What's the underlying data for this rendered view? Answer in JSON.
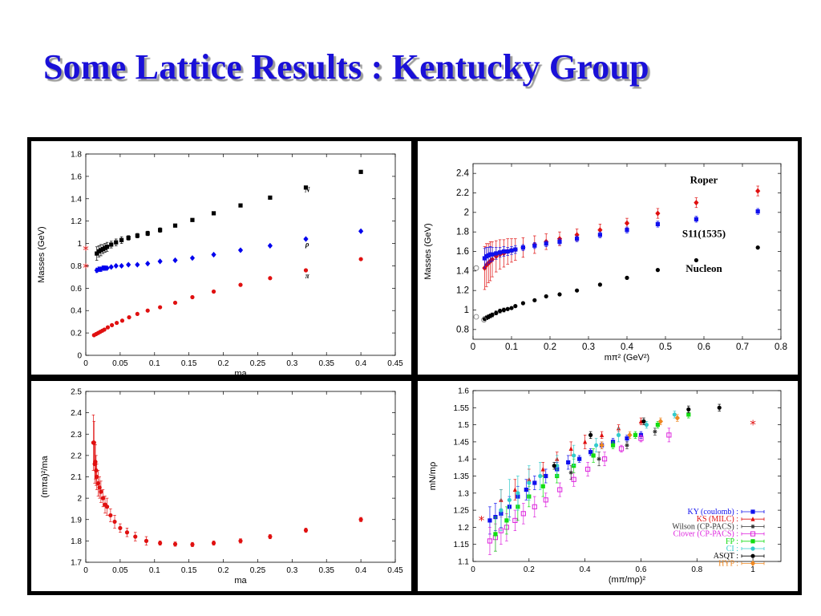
{
  "title": "Some Lattice  Results : Kentucky Group",
  "chart_data": [
    {
      "type": "scatter",
      "position": "top-left",
      "xlabel": "ma",
      "ylabel": "Masses (GeV)",
      "xlim": [
        0,
        0.45
      ],
      "ylim": [
        0,
        1.8
      ],
      "xticks": [
        "0",
        "0.05",
        "0.1",
        "0.15",
        "0.2",
        "0.25",
        "0.3",
        "0.35",
        "0.4",
        "0.45"
      ],
      "yticks": [
        "0",
        "0.2",
        "0.4",
        "0.6",
        "0.8",
        "1",
        "1.2",
        "1.4",
        "1.6",
        "1.8"
      ],
      "annotations": [
        "N",
        "ρ",
        "π"
      ],
      "series": [
        {
          "label": "N",
          "color": "#000000",
          "marker": "square",
          "x": [
            0.016,
            0.019,
            0.022,
            0.025,
            0.028,
            0.031,
            0.037,
            0.044,
            0.052,
            0.062,
            0.075,
            0.09,
            0.108,
            0.13,
            0.155,
            0.186,
            0.225,
            0.268,
            0.32,
            0.4
          ],
          "y": [
            0.91,
            0.93,
            0.94,
            0.95,
            0.96,
            0.97,
            0.99,
            1.01,
            1.03,
            1.05,
            1.07,
            1.09,
            1.12,
            1.16,
            1.21,
            1.27,
            1.34,
            1.41,
            1.5,
            1.64
          ],
          "err": [
            0.06,
            0.05,
            0.05,
            0.04,
            0.04,
            0.04,
            0.03,
            0.03,
            0.03,
            0.02,
            0.02,
            0.02,
            0.02,
            0.01,
            0.01,
            0.01,
            0.01,
            0.01,
            0.01,
            0.01
          ]
        },
        {
          "label": "ρ",
          "color": "#0000ee",
          "marker": "diamond",
          "x": [
            0.016,
            0.019,
            0.022,
            0.025,
            0.028,
            0.031,
            0.037,
            0.044,
            0.052,
            0.062,
            0.075,
            0.09,
            0.108,
            0.13,
            0.155,
            0.186,
            0.225,
            0.268,
            0.32,
            0.4
          ],
          "y": [
            0.76,
            0.77,
            0.77,
            0.78,
            0.78,
            0.78,
            0.79,
            0.8,
            0.8,
            0.81,
            0.81,
            0.82,
            0.84,
            0.85,
            0.87,
            0.9,
            0.94,
            0.98,
            1.04,
            1.11
          ],
          "err": [
            0.02,
            0.02,
            0.02,
            0.02,
            0.02,
            0.01,
            0.01,
            0.01,
            0.01,
            0.01,
            0.01,
            0.01,
            0.01,
            0.01,
            0.01,
            0.01,
            0.01,
            0.01,
            0.01,
            0.01
          ]
        },
        {
          "label": "π",
          "color": "#e01010",
          "marker": "circle",
          "x": [
            0.012,
            0.015,
            0.018,
            0.021,
            0.024,
            0.027,
            0.032,
            0.038,
            0.045,
            0.053,
            0.063,
            0.075,
            0.09,
            0.108,
            0.13,
            0.155,
            0.186,
            0.225,
            0.268,
            0.32,
            0.4
          ],
          "y": [
            0.18,
            0.19,
            0.2,
            0.21,
            0.22,
            0.23,
            0.25,
            0.27,
            0.29,
            0.31,
            0.34,
            0.37,
            0.4,
            0.43,
            0.47,
            0.52,
            0.57,
            0.63,
            0.69,
            0.76,
            0.86
          ],
          "err": [
            0,
            0,
            0,
            0,
            0,
            0,
            0,
            0,
            0,
            0,
            0,
            0,
            0,
            0,
            0,
            0,
            0,
            0,
            0,
            0,
            0
          ]
        }
      ],
      "asterisks": [
        {
          "y": 0.94,
          "color": "#e01010"
        },
        {
          "y": 0.78,
          "color": "#e01010"
        }
      ]
    },
    {
      "type": "scatter",
      "position": "top-right",
      "xlabel": "mπ² (GeV²)",
      "ylabel": "Masses (GeV)",
      "xlim": [
        0,
        0.8
      ],
      "ylim": [
        0.7,
        2.5
      ],
      "xticks": [
        "0",
        "0.1",
        "0.2",
        "0.3",
        "0.4",
        "0.5",
        "0.6",
        "0.7",
        "0.8"
      ],
      "yticks": [
        "0.8",
        "1",
        "1.2",
        "1.4",
        "1.6",
        "1.8",
        "2",
        "2.2",
        "2.4"
      ],
      "annotations": [
        "Roper",
        "S11(1535)",
        "Nucleon"
      ],
      "series": [
        {
          "label": "Roper",
          "color": "#e01010",
          "marker": "diamond",
          "x": [
            0.03,
            0.035,
            0.04,
            0.045,
            0.05,
            0.06,
            0.07,
            0.08,
            0.09,
            0.1,
            0.11,
            0.13,
            0.16,
            0.19,
            0.225,
            0.27,
            0.33,
            0.4,
            0.48,
            0.58,
            0.74
          ],
          "y": [
            1.43,
            1.46,
            1.48,
            1.5,
            1.52,
            1.55,
            1.57,
            1.58,
            1.6,
            1.61,
            1.62,
            1.64,
            1.67,
            1.7,
            1.73,
            1.77,
            1.82,
            1.89,
            1.99,
            2.1,
            2.22
          ],
          "err": [
            0.22,
            0.22,
            0.2,
            0.2,
            0.18,
            0.16,
            0.15,
            0.14,
            0.13,
            0.12,
            0.11,
            0.1,
            0.09,
            0.08,
            0.07,
            0.06,
            0.06,
            0.05,
            0.05,
            0.05,
            0.05
          ]
        },
        {
          "label": "S11(1535)",
          "color": "#1010ee",
          "marker": "square",
          "x": [
            0.03,
            0.035,
            0.04,
            0.045,
            0.05,
            0.06,
            0.07,
            0.08,
            0.09,
            0.1,
            0.11,
            0.13,
            0.16,
            0.19,
            0.225,
            0.27,
            0.33,
            0.4,
            0.48,
            0.58,
            0.74
          ],
          "y": [
            1.53,
            1.55,
            1.56,
            1.57,
            1.57,
            1.58,
            1.59,
            1.6,
            1.6,
            1.61,
            1.62,
            1.64,
            1.66,
            1.68,
            1.7,
            1.73,
            1.77,
            1.82,
            1.88,
            1.93,
            2.01
          ],
          "err": [
            0.1,
            0.09,
            0.08,
            0.08,
            0.07,
            0.06,
            0.05,
            0.05,
            0.04,
            0.04,
            0.04,
            0.03,
            0.03,
            0.03,
            0.03,
            0.03,
            0.03,
            0.03,
            0.03,
            0.03,
            0.03
          ]
        },
        {
          "label": "Nucleon",
          "color": "#000000",
          "marker": "circle",
          "x": [
            0.03,
            0.035,
            0.04,
            0.045,
            0.05,
            0.06,
            0.07,
            0.08,
            0.09,
            0.1,
            0.11,
            0.13,
            0.16,
            0.19,
            0.225,
            0.27,
            0.33,
            0.4,
            0.48,
            0.58,
            0.74
          ],
          "y": [
            0.91,
            0.92,
            0.93,
            0.94,
            0.95,
            0.97,
            0.99,
            1.0,
            1.01,
            1.02,
            1.04,
            1.07,
            1.1,
            1.14,
            1.16,
            1.2,
            1.26,
            1.33,
            1.41,
            1.51,
            1.64
          ],
          "err": [
            0.02,
            0.02,
            0.02,
            0.02,
            0.02,
            0.02,
            0.02,
            0.02,
            0.01,
            0.01,
            0.01,
            0.01,
            0.01,
            0.01,
            0.01,
            0.01,
            0.01,
            0.01,
            0.01,
            0.01,
            0.01
          ]
        }
      ],
      "open_points": [
        {
          "x": 0.0,
          "y": 0.93
        },
        {
          "x": 0.02,
          "y": 0.9
        },
        {
          "x": 0.0,
          "y": 1.43
        }
      ]
    },
    {
      "type": "scatter",
      "position": "bottom-left",
      "xlabel": "ma",
      "ylabel": "(mπa)²/ma",
      "xlim": [
        0,
        0.45
      ],
      "ylim": [
        1.7,
        2.5
      ],
      "xticks": [
        "0",
        "0.05",
        "0.1",
        "0.15",
        "0.2",
        "0.25",
        "0.3",
        "0.35",
        "0.4",
        "0.45"
      ],
      "yticks": [
        "1.7",
        "1.8",
        "1.9",
        "2",
        "2.1",
        "2.2",
        "2.3",
        "2.4",
        "2.5"
      ],
      "series": [
        {
          "label": "",
          "color": "#e01010",
          "marker": "circle",
          "x": [
            0.011,
            0.012,
            0.013,
            0.014,
            0.015,
            0.016,
            0.018,
            0.02,
            0.022,
            0.025,
            0.028,
            0.031,
            0.036,
            0.042,
            0.05,
            0.06,
            0.072,
            0.088,
            0.108,
            0.13,
            0.155,
            0.186,
            0.225,
            0.268,
            0.32,
            0.4
          ],
          "y": [
            2.26,
            2.26,
            2.16,
            2.17,
            2.13,
            2.1,
            2.07,
            2.05,
            2.03,
            2.0,
            1.97,
            1.96,
            1.92,
            1.89,
            1.86,
            1.84,
            1.82,
            1.8,
            1.79,
            1.785,
            1.783,
            1.79,
            1.8,
            1.82,
            1.85,
            1.9
          ],
          "err": [
            0.13,
            0.1,
            0.09,
            0.08,
            0.07,
            0.06,
            0.06,
            0.05,
            0.05,
            0.04,
            0.04,
            0.04,
            0.03,
            0.03,
            0.02,
            0.02,
            0.02,
            0.02,
            0.01,
            0.01,
            0.01,
            0.01,
            0.01,
            0.01,
            0.01,
            0.01
          ]
        }
      ]
    },
    {
      "type": "scatter",
      "position": "bottom-right",
      "xlabel": "(mπ/mρ)²",
      "ylabel": "mN/mρ",
      "xlim": [
        0,
        1.1
      ],
      "ylim": [
        1.1,
        1.6
      ],
      "xticks": [
        "0",
        "0.2",
        "0.4",
        "0.6",
        "0.8",
        "1"
      ],
      "yticks": [
        "1.1",
        "1.15",
        "1.2",
        "1.25",
        "1.3",
        "1.35",
        "1.4",
        "1.45",
        "1.5",
        "1.55",
        "1.6"
      ],
      "legend_position": "lower-right",
      "series": [
        {
          "label": "KY (coulomb) :",
          "color": "#1010ee",
          "marker": "square",
          "x": [
            0.06,
            0.08,
            0.1,
            0.13,
            0.16,
            0.19,
            0.22,
            0.26,
            0.3,
            0.34,
            0.38,
            0.42,
            0.46,
            0.5,
            0.55,
            0.6
          ],
          "y": [
            1.22,
            1.23,
            1.24,
            1.26,
            1.29,
            1.31,
            1.33,
            1.35,
            1.37,
            1.39,
            1.4,
            1.42,
            1.44,
            1.45,
            1.46,
            1.47
          ],
          "err": [
            0.04,
            0.04,
            0.04,
            0.03,
            0.03,
            0.03,
            0.02,
            0.02,
            0.02,
            0.02,
            0.01,
            0.01,
            0.01,
            0.01,
            0.01,
            0.01
          ]
        },
        {
          "label": "KS (MILC) :",
          "color": "#e01010",
          "marker": "triangle",
          "x": [
            0.1,
            0.15,
            0.2,
            0.25,
            0.3,
            0.35,
            0.4,
            0.46,
            0.52,
            0.6
          ],
          "y": [
            1.28,
            1.31,
            1.34,
            1.37,
            1.4,
            1.43,
            1.45,
            1.47,
            1.49,
            1.51
          ],
          "err": [
            0.03,
            0.03,
            0.03,
            0.02,
            0.02,
            0.02,
            0.02,
            0.01,
            0.01,
            0.01
          ]
        },
        {
          "label": "Wilson (CP-PACS) :",
          "color": "#333333",
          "marker": "star",
          "x": [
            0.35,
            0.45,
            0.55,
            0.65
          ],
          "y": [
            1.36,
            1.4,
            1.44,
            1.48
          ],
          "err": [
            0.02,
            0.02,
            0.01,
            0.01
          ]
        },
        {
          "label": "Clover (CP-PACS) :",
          "color": "#dd22dd",
          "marker": "open-square",
          "x": [
            0.06,
            0.08,
            0.1,
            0.12,
            0.15,
            0.18,
            0.22,
            0.26,
            0.31,
            0.36,
            0.41,
            0.47,
            0.53,
            0.6,
            0.7
          ],
          "y": [
            1.16,
            1.17,
            1.19,
            1.2,
            1.22,
            1.24,
            1.26,
            1.28,
            1.31,
            1.34,
            1.37,
            1.4,
            1.43,
            1.46,
            1.47
          ],
          "err": [
            0.04,
            0.04,
            0.04,
            0.04,
            0.03,
            0.03,
            0.03,
            0.02,
            0.02,
            0.02,
            0.02,
            0.02,
            0.01,
            0.01,
            0.02
          ]
        },
        {
          "label": "FP :",
          "color": "#11dd11",
          "marker": "square",
          "x": [
            0.08,
            0.12,
            0.16,
            0.2,
            0.25,
            0.3,
            0.36,
            0.43,
            0.5,
            0.58,
            0.66,
            0.77
          ],
          "y": [
            1.18,
            1.22,
            1.26,
            1.29,
            1.32,
            1.35,
            1.38,
            1.41,
            1.44,
            1.47,
            1.5,
            1.53
          ],
          "err": [
            0.05,
            0.04,
            0.04,
            0.03,
            0.03,
            0.02,
            0.02,
            0.02,
            0.01,
            0.01,
            0.01,
            0.01
          ]
        },
        {
          "label": "CI :",
          "color": "#33cccc",
          "marker": "circle",
          "x": [
            0.1,
            0.13,
            0.16,
            0.2,
            0.24,
            0.3,
            0.36,
            0.44,
            0.52,
            0.62,
            0.72
          ],
          "y": [
            1.25,
            1.28,
            1.3,
            1.33,
            1.35,
            1.38,
            1.41,
            1.44,
            1.47,
            1.5,
            1.53
          ],
          "err": [
            0.06,
            0.06,
            0.05,
            0.05,
            0.04,
            0.03,
            0.03,
            0.02,
            0.02,
            0.01,
            0.01
          ]
        },
        {
          "label": "ASQT :",
          "color": "#000000",
          "marker": "circle",
          "x": [
            0.29,
            0.42,
            0.61,
            0.77,
            0.88
          ],
          "y": [
            1.38,
            1.47,
            1.51,
            1.545,
            1.55
          ],
          "err": [
            0.01,
            0.01,
            0.01,
            0.01,
            0.01
          ]
        },
        {
          "label": "HYP :",
          "color": "#ee8822",
          "marker": "diamond",
          "x": [
            0.46,
            0.56,
            0.67,
            0.73
          ],
          "y": [
            1.44,
            1.47,
            1.51,
            1.52
          ],
          "err": [
            0.01,
            0.01,
            0.01,
            0.01
          ]
        }
      ],
      "asterisks": [
        {
          "x": 0.03,
          "y": 1.22,
          "color": "#e01010"
        },
        {
          "x": 1.0,
          "y": 1.5,
          "color": "#e01010"
        }
      ]
    }
  ]
}
